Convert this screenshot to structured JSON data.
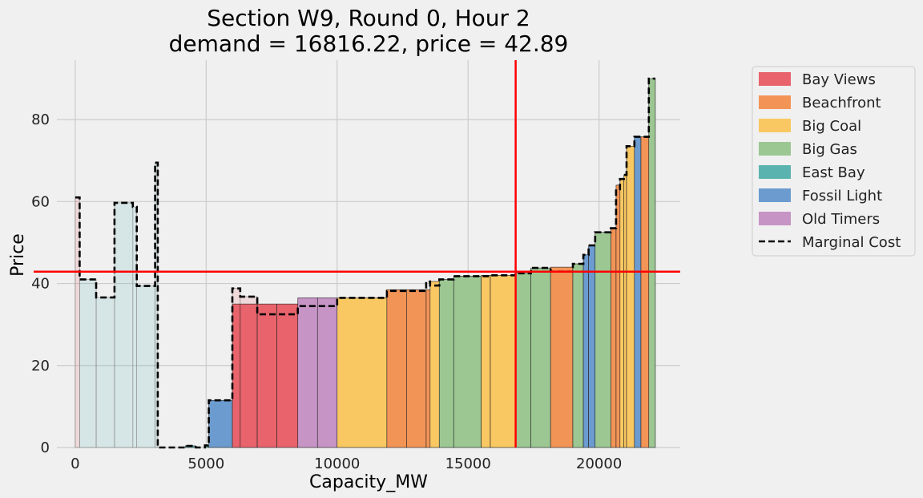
{
  "chart_data": {
    "type": "bar",
    "title_line1": "Section W9, Round 0, Hour 2",
    "title_line2": "demand = 16816.22, price = 42.89",
    "xlabel": "Capacity_MW",
    "ylabel": "Price",
    "xlim": [
      -700,
      23100
    ],
    "ylim": [
      0,
      94.5
    ],
    "xticks": [
      0,
      5000,
      10000,
      15000,
      20000
    ],
    "xtick_labels": [
      "0",
      "5000",
      "10000",
      "15000",
      "20000"
    ],
    "yticks": [
      0,
      20,
      40,
      60,
      80
    ],
    "ytick_labels": [
      "0",
      "20",
      "40",
      "60",
      "80"
    ],
    "grid": true,
    "legend_placement": "outside-top-right",
    "demand": 16816.22,
    "price": 42.89,
    "colors": {
      "Bay Views": "#e8636b",
      "Beachfront": "#f39457",
      "Big Coal": "#f9c862",
      "Big Gas": "#9cc793",
      "East Bay": "#5bb3b0",
      "Fossil Light": "#6b9bcf",
      "Old Timers": "#c794c6",
      "demand_line": "#ff0000",
      "marginal_cost": "#000000",
      "background": "#f0f0f0",
      "grid": "#cbcbcb"
    },
    "legend": [
      "Bay Views",
      "Beachfront",
      "Big Coal",
      "Big Gas",
      "East Bay",
      "Fossil Light",
      "Old Timers",
      "Marginal Cost"
    ],
    "bars": [
      {
        "x0": 0,
        "x1": 170,
        "price": 61,
        "portfolio": "Bay Views",
        "faded": true
      },
      {
        "x0": 170,
        "x1": 800,
        "price": 41,
        "portfolio": "East Bay",
        "faded": true
      },
      {
        "x0": 800,
        "x1": 1500,
        "price": 36.6,
        "portfolio": "East Bay",
        "faded": true
      },
      {
        "x0": 1500,
        "x1": 2200,
        "price": 59.7,
        "portfolio": "East Bay",
        "faded": true
      },
      {
        "x0": 2200,
        "x1": 2350,
        "price": 58.7,
        "portfolio": "East Bay",
        "faded": true
      },
      {
        "x0": 2350,
        "x1": 3050,
        "price": 39.4,
        "portfolio": "East Bay",
        "faded": true
      },
      {
        "x0": 3050,
        "x1": 3150,
        "price": 69.5,
        "portfolio": "East Bay",
        "faded": true
      },
      {
        "x0": 3150,
        "x1": 4200,
        "price": 0,
        "portfolio": "East Bay",
        "faded": false
      },
      {
        "x0": 4200,
        "x1": 4600,
        "price": 0.4,
        "portfolio": "East Bay",
        "faded": false
      },
      {
        "x0": 4600,
        "x1": 4950,
        "price": 0,
        "portfolio": "East Bay",
        "faded": false
      },
      {
        "x0": 4950,
        "x1": 5100,
        "price": 0.5,
        "portfolio": "East Bay",
        "faded": false
      },
      {
        "x0": 5100,
        "x1": 6000,
        "price": 11.5,
        "portfolio": "Fossil Light",
        "faded": false
      },
      {
        "x0": 6000,
        "x1": 6300,
        "price": 38.8,
        "portfolio": "Bay Views",
        "faded": true
      },
      {
        "x0": 6300,
        "x1": 6950,
        "price": 36.8,
        "portfolio": "Bay Views",
        "faded": true
      },
      {
        "x0": 6000,
        "x1": 6300,
        "price": 35,
        "portfolio": "Bay Views",
        "faded": false
      },
      {
        "x0": 6300,
        "x1": 6950,
        "price": 35,
        "portfolio": "Bay Views",
        "faded": false
      },
      {
        "x0": 6950,
        "x1": 7700,
        "price": 35,
        "portfolio": "Bay Views",
        "faded": false
      },
      {
        "x0": 7700,
        "x1": 8500,
        "price": 35,
        "portfolio": "Bay Views",
        "faded": false
      },
      {
        "x0": 8500,
        "x1": 9250,
        "price": 36.5,
        "portfolio": "Old Timers",
        "faded": false
      },
      {
        "x0": 9250,
        "x1": 10000,
        "price": 36.5,
        "portfolio": "Old Timers",
        "faded": false
      },
      {
        "x0": 10000,
        "x1": 11900,
        "price": 36.5,
        "portfolio": "Big Coal",
        "faded": false
      },
      {
        "x0": 11900,
        "x1": 12650,
        "price": 38.5,
        "portfolio": "Beachfront",
        "faded": false
      },
      {
        "x0": 12650,
        "x1": 13400,
        "price": 38.5,
        "portfolio": "Beachfront",
        "faded": false
      },
      {
        "x0": 13400,
        "x1": 13550,
        "price": 38.5,
        "portfolio": "Beachfront",
        "faded": false
      },
      {
        "x0": 13550,
        "x1": 13900,
        "price": 40.5,
        "portfolio": "Big Coal",
        "faded": false
      },
      {
        "x0": 13900,
        "x1": 14450,
        "price": 41.0,
        "portfolio": "Big Gas",
        "faded": false
      },
      {
        "x0": 14450,
        "x1": 15500,
        "price": 41.8,
        "portfolio": "Big Gas",
        "faded": false
      },
      {
        "x0": 15500,
        "x1": 15850,
        "price": 42.0,
        "portfolio": "Big Coal",
        "faded": false
      },
      {
        "x0": 15850,
        "x1": 16800,
        "price": 42.0,
        "portfolio": "Big Coal",
        "faded": false
      },
      {
        "x0": 16800,
        "x1": 17400,
        "price": 42.5,
        "portfolio": "Big Gas",
        "faded": false
      },
      {
        "x0": 17400,
        "x1": 18150,
        "price": 43.8,
        "portfolio": "Big Gas",
        "faded": false
      },
      {
        "x0": 18150,
        "x1": 19000,
        "price": 44.0,
        "portfolio": "Beachfront",
        "faded": false
      },
      {
        "x0": 19000,
        "x1": 19400,
        "price": 44.8,
        "portfolio": "Big Gas",
        "faded": false
      },
      {
        "x0": 19400,
        "x1": 19600,
        "price": 47.0,
        "portfolio": "Fossil Light",
        "faded": false
      },
      {
        "x0": 19600,
        "x1": 19850,
        "price": 49.3,
        "portfolio": "Fossil Light",
        "faded": false
      },
      {
        "x0": 19850,
        "x1": 20450,
        "price": 52.5,
        "portfolio": "Big Gas",
        "faded": false
      },
      {
        "x0": 20450,
        "x1": 20650,
        "price": 53.5,
        "portfolio": "Beachfront",
        "faded": false
      },
      {
        "x0": 20650,
        "x1": 20800,
        "price": 64.0,
        "portfolio": "Beachfront",
        "faded": false
      },
      {
        "x0": 20800,
        "x1": 20950,
        "price": 65.5,
        "portfolio": "Big Coal",
        "faded": false
      },
      {
        "x0": 20950,
        "x1": 21050,
        "price": 66.5,
        "portfolio": "Big Coal",
        "faded": false
      },
      {
        "x0": 21050,
        "x1": 21350,
        "price": 73.5,
        "portfolio": "Big Coal",
        "faded": false
      },
      {
        "x0": 21350,
        "x1": 21600,
        "price": 75.8,
        "portfolio": "Fossil Light",
        "faded": false
      },
      {
        "x0": 21600,
        "x1": 21900,
        "price": 75.8,
        "portfolio": "Beachfront",
        "faded": false
      },
      {
        "x0": 21900,
        "x1": 22150,
        "price": 90.0,
        "portfolio": "Big Gas",
        "faded": false
      }
    ],
    "marginal_cost": {
      "x": [
        0,
        170,
        170,
        800,
        800,
        1500,
        1500,
        2200,
        2200,
        2350,
        2350,
        3050,
        3050,
        3150,
        3150,
        4200,
        4200,
        4600,
        4600,
        4950,
        4950,
        5100,
        5100,
        6000,
        6000,
        6300,
        6300,
        6950,
        6950,
        7700,
        7700,
        8500,
        8500,
        9250,
        9250,
        10000,
        10000,
        11900,
        11900,
        12650,
        12650,
        13400,
        13400,
        13550,
        13550,
        13900,
        13900,
        14450,
        14450,
        15500,
        15500,
        15850,
        15850,
        16800,
        16800,
        17400,
        17400,
        18150,
        18150,
        19000,
        19000,
        19400,
        19400,
        19600,
        19600,
        19850,
        19850,
        20450,
        20450,
        20650,
        20650,
        20800,
        20800,
        20950,
        20950,
        21050,
        21050,
        21350,
        21350,
        21600,
        21600,
        21900,
        21900,
        22150
      ],
      "y": [
        61,
        61,
        41,
        41,
        36.6,
        36.6,
        59.7,
        59.7,
        58.7,
        58.7,
        39.4,
        39.4,
        69.5,
        69.5,
        0,
        0,
        0.4,
        0.4,
        0,
        0,
        0.5,
        0.5,
        11.5,
        11.5,
        38.8,
        38.8,
        36.8,
        36.8,
        32.5,
        32.5,
        32.5,
        32.5,
        34.5,
        34.5,
        34.5,
        34.5,
        36.5,
        36.5,
        38.2,
        38.2,
        38.2,
        38.2,
        40.5,
        40.5,
        39.5,
        39.5,
        41.0,
        41.0,
        41.8,
        41.8,
        41.8,
        41.8,
        42.0,
        42.0,
        42.5,
        42.5,
        43.8,
        43.8,
        42.9,
        42.9,
        44.8,
        44.8,
        47.0,
        47.0,
        49.3,
        49.3,
        52.5,
        52.5,
        53.5,
        53.5,
        63.0,
        63.0,
        65.5,
        65.5,
        66.5,
        66.5,
        73.5,
        73.5,
        75.8,
        75.8,
        75.8,
        75.8,
        90.0,
        90.0
      ]
    }
  }
}
